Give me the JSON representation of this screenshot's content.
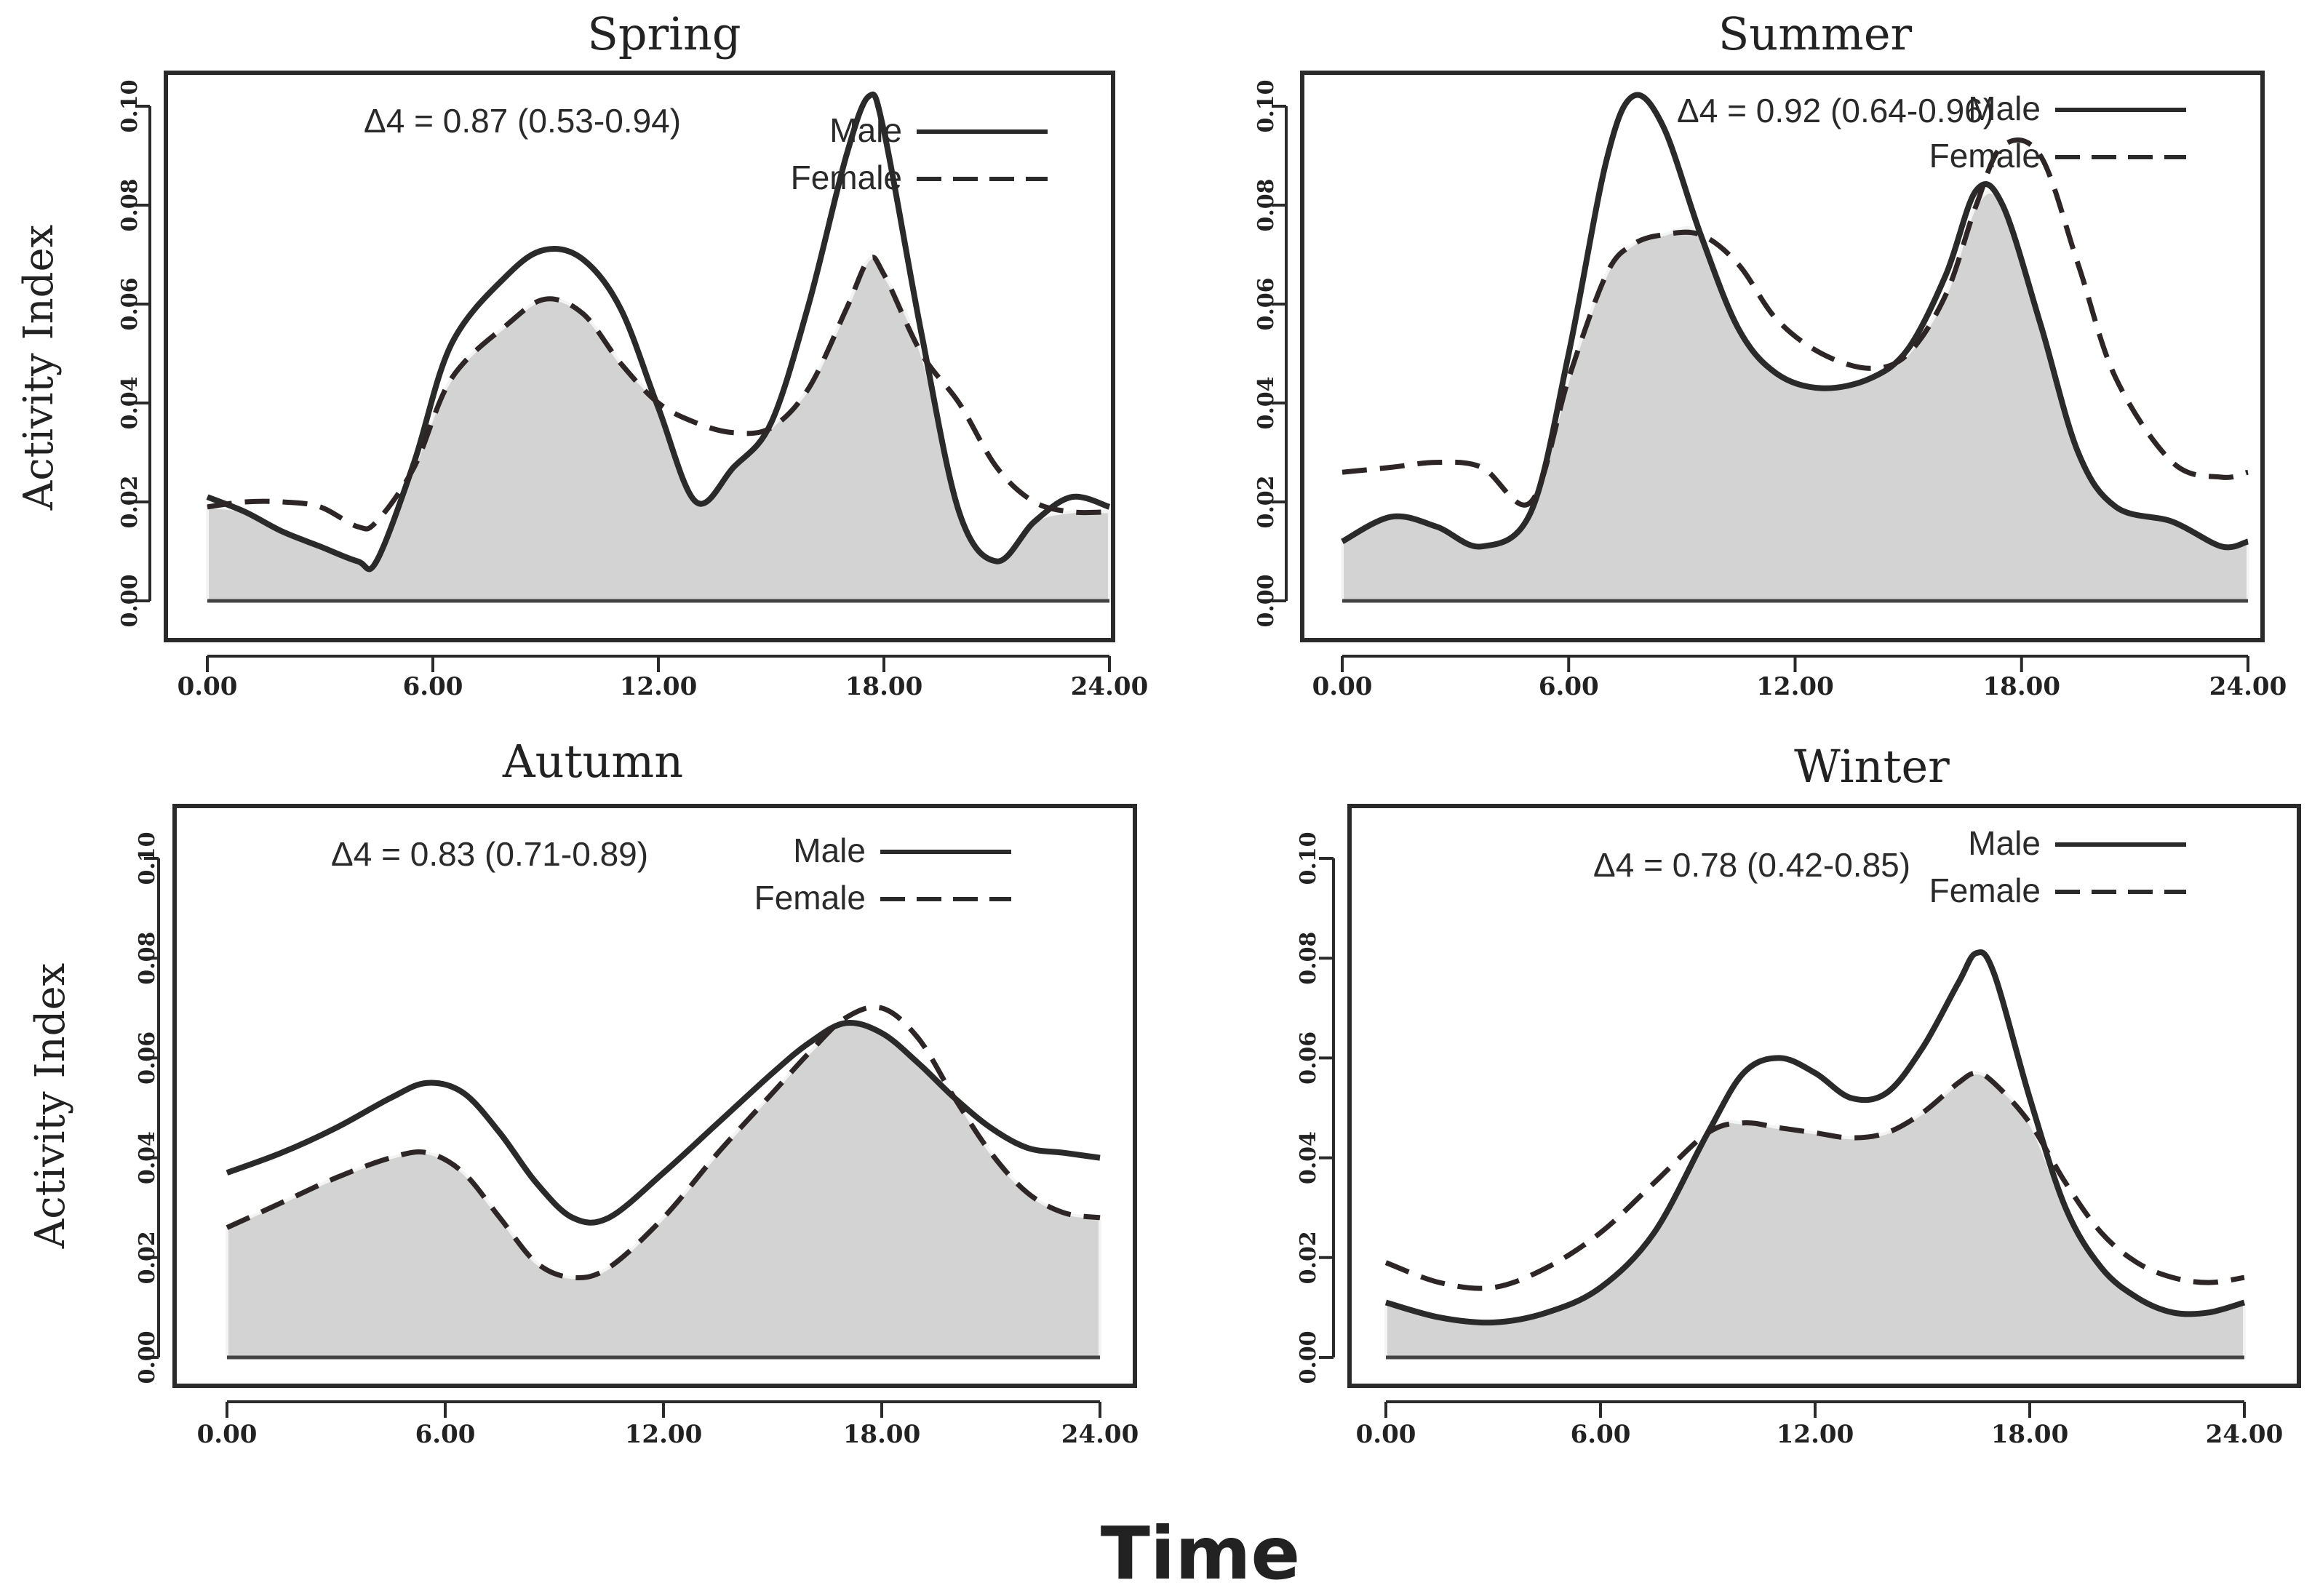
{
  "figure": {
    "ylabel": "Activity Index",
    "xlabel": "Time"
  },
  "chart_data": [
    {
      "type": "line",
      "title": "Spring",
      "annotation": "Δ4 = 0.87 (0.53-0.94)",
      "xlabel": "Time",
      "ylabel": "Activity Index",
      "xlim": [
        0,
        24
      ],
      "ylim": [
        0,
        0.1
      ],
      "xticks": [
        "0.00",
        "6.00",
        "12.00",
        "18.00",
        "24.00"
      ],
      "yticks": [
        "0.00",
        "0.02",
        "0.04",
        "0.06",
        "0.08",
        "0.10"
      ],
      "legend": {
        "position": "top-right",
        "entries": [
          "Male",
          "Female"
        ]
      },
      "series": [
        {
          "name": "Male",
          "style": "solid",
          "x": [
            0,
            1,
            2,
            3,
            4,
            4.5,
            5.5,
            6.5,
            8,
            9,
            10,
            11,
            12,
            13,
            14,
            15,
            16,
            17,
            17.6,
            18,
            19,
            20,
            21,
            22,
            23,
            24
          ],
          "y": [
            0.021,
            0.018,
            0.014,
            0.011,
            0.008,
            0.008,
            0.028,
            0.052,
            0.066,
            0.071,
            0.069,
            0.059,
            0.039,
            0.02,
            0.027,
            0.036,
            0.06,
            0.09,
            0.102,
            0.095,
            0.054,
            0.018,
            0.008,
            0.016,
            0.021,
            0.019
          ]
        },
        {
          "name": "Female",
          "style": "dashed",
          "x": [
            0,
            1,
            2,
            3,
            4,
            4.5,
            5.5,
            6.5,
            8,
            9,
            10,
            11,
            12,
            13,
            14,
            15,
            16,
            17,
            17.6,
            18,
            19,
            20,
            21,
            22,
            23,
            24
          ],
          "y": [
            0.019,
            0.02,
            0.02,
            0.019,
            0.015,
            0.016,
            0.027,
            0.045,
            0.056,
            0.061,
            0.058,
            0.048,
            0.04,
            0.036,
            0.034,
            0.035,
            0.043,
            0.059,
            0.069,
            0.066,
            0.05,
            0.04,
            0.027,
            0.02,
            0.018,
            0.018
          ]
        }
      ]
    },
    {
      "type": "line",
      "title": "Summer",
      "annotation": "Δ4 = 0.92 (0.64-0.96)",
      "xlabel": "Time",
      "ylabel": "Activity Index",
      "xlim": [
        0,
        24
      ],
      "ylim": [
        0,
        0.1
      ],
      "xticks": [
        "0.00",
        "6.00",
        "12.00",
        "18.00",
        "24.00"
      ],
      "yticks": [
        "0.00",
        "0.02",
        "0.04",
        "0.06",
        "0.08",
        "0.10"
      ],
      "legend": {
        "position": "top-right",
        "entries": [
          "Male",
          "Female"
        ]
      },
      "series": [
        {
          "name": "Male",
          "style": "solid",
          "x": [
            0,
            1.3,
            2.5,
            3.7,
            5,
            6,
            7,
            7.7,
            8.5,
            9.5,
            10.5,
            11.5,
            12.7,
            14,
            15,
            16,
            16.8,
            17.5,
            18.5,
            19.5,
            20.5,
            22,
            23.3,
            24
          ],
          "y": [
            0.012,
            0.017,
            0.015,
            0.011,
            0.018,
            0.05,
            0.089,
            0.102,
            0.096,
            0.074,
            0.055,
            0.046,
            0.043,
            0.045,
            0.051,
            0.066,
            0.083,
            0.08,
            0.056,
            0.03,
            0.019,
            0.016,
            0.011,
            0.012
          ]
        },
        {
          "name": "Female",
          "style": "dashed",
          "x": [
            0,
            1.3,
            2.5,
            3.7,
            5,
            6,
            7,
            7.7,
            8.5,
            9.5,
            10.5,
            11.5,
            12.7,
            14,
            15,
            16,
            16.8,
            17.5,
            18.5,
            19.5,
            20.5,
            22,
            23.3,
            24
          ],
          "y": [
            0.026,
            0.027,
            0.028,
            0.027,
            0.02,
            0.045,
            0.066,
            0.072,
            0.074,
            0.074,
            0.068,
            0.057,
            0.05,
            0.047,
            0.05,
            0.062,
            0.08,
            0.092,
            0.09,
            0.068,
            0.045,
            0.028,
            0.025,
            0.026
          ]
        }
      ]
    },
    {
      "type": "line",
      "title": "Autumn",
      "annotation": "Δ4 = 0.83 (0.71-0.89)",
      "xlabel": "Time",
      "ylabel": "Activity Index",
      "xlim": [
        0,
        24
      ],
      "ylim": [
        0,
        0.1
      ],
      "xticks": [
        "0.00",
        "6.00",
        "12.00",
        "18.00",
        "24.00"
      ],
      "yticks": [
        "0.00",
        "0.02",
        "0.04",
        "0.06",
        "0.08",
        "0.10"
      ],
      "legend": {
        "position": "top-right",
        "entries": [
          "Male",
          "Female"
        ]
      },
      "series": [
        {
          "name": "Male",
          "style": "solid",
          "x": [
            0,
            1.5,
            3,
            4.5,
            5.5,
            6.5,
            7.5,
            8.5,
            9.5,
            10.5,
            12,
            13.5,
            15,
            16,
            17,
            18,
            19,
            20,
            21,
            22,
            23,
            24
          ],
          "y": [
            0.037,
            0.041,
            0.046,
            0.052,
            0.055,
            0.053,
            0.045,
            0.035,
            0.028,
            0.028,
            0.037,
            0.047,
            0.057,
            0.063,
            0.067,
            0.065,
            0.059,
            0.052,
            0.046,
            0.042,
            0.041,
            0.04
          ]
        },
        {
          "name": "Female",
          "style": "dashed",
          "x": [
            0,
            1.5,
            3,
            4.5,
            5.5,
            6.5,
            7.5,
            8.5,
            9.5,
            10.5,
            12,
            13.5,
            15,
            16,
            17,
            18,
            19,
            20,
            21,
            22,
            23,
            24
          ],
          "y": [
            0.026,
            0.031,
            0.036,
            0.04,
            0.041,
            0.037,
            0.028,
            0.019,
            0.016,
            0.018,
            0.028,
            0.041,
            0.053,
            0.061,
            0.068,
            0.07,
            0.064,
            0.052,
            0.041,
            0.033,
            0.029,
            0.028
          ]
        }
      ]
    },
    {
      "type": "line",
      "title": "Winter",
      "annotation": "Δ4 = 0.78 (0.42-0.85)",
      "xlabel": "Time",
      "ylabel": "Activity Index",
      "xlim": [
        0,
        24
      ],
      "ylim": [
        0,
        0.1
      ],
      "xticks": [
        "0.00",
        "6.00",
        "12.00",
        "18.00",
        "24.00"
      ],
      "yticks": [
        "0.00",
        "0.02",
        "0.04",
        "0.06",
        "0.08",
        "0.10"
      ],
      "legend": {
        "position": "top-right",
        "entries": [
          "Male",
          "Female"
        ]
      },
      "series": [
        {
          "name": "Male",
          "style": "solid",
          "x": [
            0,
            1.5,
            3,
            4.5,
            6,
            7.5,
            9,
            10,
            11,
            12,
            13,
            14,
            15,
            16,
            16.5,
            17,
            18,
            19,
            20,
            21,
            22,
            23,
            24
          ],
          "y": [
            0.011,
            0.008,
            0.007,
            0.009,
            0.014,
            0.025,
            0.045,
            0.057,
            0.06,
            0.057,
            0.052,
            0.053,
            0.062,
            0.075,
            0.081,
            0.077,
            0.052,
            0.03,
            0.018,
            0.012,
            0.009,
            0.009,
            0.011
          ]
        },
        {
          "name": "Female",
          "style": "dashed",
          "x": [
            0,
            1.5,
            3,
            4.5,
            6,
            7.5,
            9,
            10,
            11,
            12,
            13,
            14,
            15,
            16,
            16.5,
            17,
            18,
            19,
            20,
            21,
            22,
            23,
            24
          ],
          "y": [
            0.019,
            0.015,
            0.014,
            0.018,
            0.025,
            0.035,
            0.045,
            0.047,
            0.046,
            0.045,
            0.044,
            0.045,
            0.049,
            0.055,
            0.057,
            0.055,
            0.047,
            0.035,
            0.025,
            0.019,
            0.016,
            0.015,
            0.016
          ]
        }
      ]
    }
  ]
}
